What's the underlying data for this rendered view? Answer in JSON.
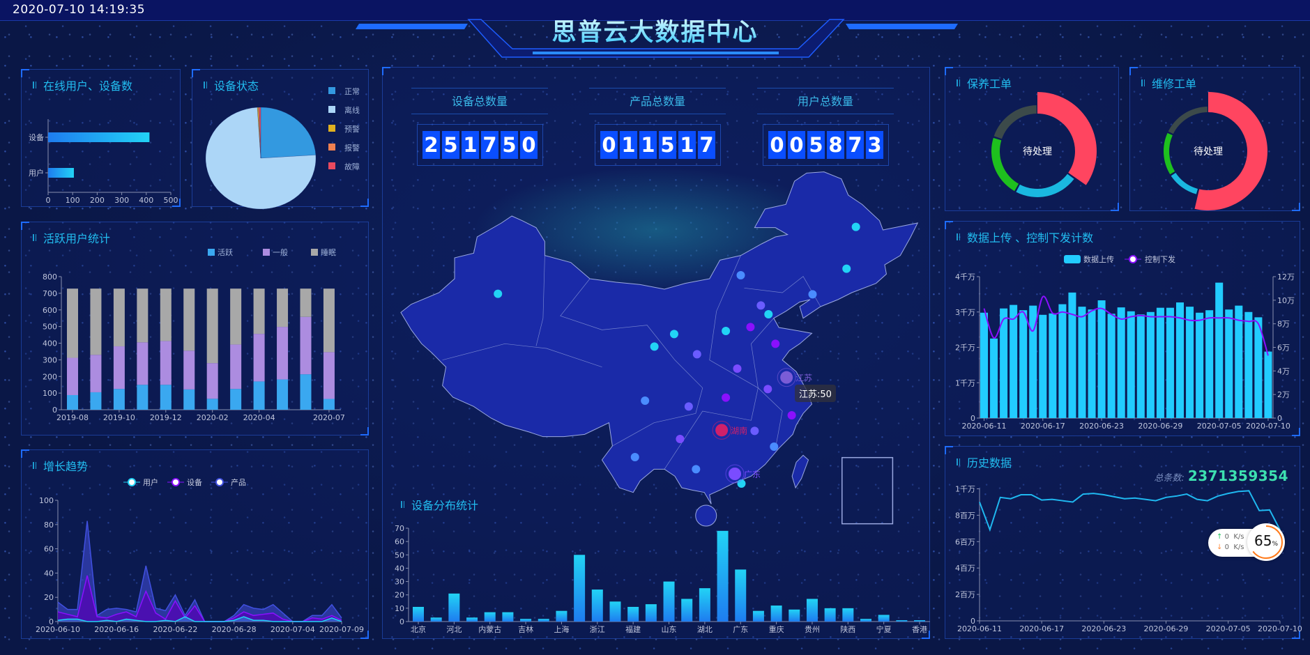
{
  "header": {
    "datetime": "2020-07-10 14:19:35",
    "title": "思普云大数据中心"
  },
  "stats": [
    {
      "label": "设备总数量",
      "digits": [
        "2",
        "5",
        "1",
        "7",
        "5",
        "0"
      ]
    },
    {
      "label": "产品总数量",
      "digits": [
        "0",
        "1",
        "1",
        "5",
        "1",
        "7"
      ]
    },
    {
      "label": "用户总数量",
      "digits": [
        "0",
        "0",
        "5",
        "8",
        "7",
        "3"
      ]
    }
  ],
  "map": {
    "labels": [
      "江苏",
      "湖南",
      "广东"
    ],
    "tooltip": "江苏:50",
    "colors": {
      "land": "#1a2aa8",
      "border": "#9aa8e0",
      "dot_cyan": "#22d3f5",
      "dot_blue": "#4a8cff",
      "dot_purple": "#8a10ff",
      "highlight": "#d0206a"
    }
  },
  "history_total": {
    "label": "总条数:",
    "value": "2371359354"
  },
  "net_widget": {
    "up": "0",
    "down": "0",
    "unit": "K/s",
    "percent": "65",
    "percent_sign": "%",
    "progress": 0.65
  },
  "chart_data": [
    {
      "title": "在线用户、设备数",
      "type": "bar",
      "orientation": "horizontal",
      "categories": [
        "设备",
        "用户"
      ],
      "values": [
        413,
        105
      ],
      "xlim": [
        0,
        500
      ],
      "xticks": [
        "0",
        "100",
        "200",
        "300",
        "400",
        "500"
      ],
      "colors": [
        "#1e7cf0",
        "#22d3f5"
      ]
    },
    {
      "title": "设备状态",
      "type": "pie",
      "categories": [
        "正常",
        "离线",
        "预警",
        "报警",
        "故障"
      ],
      "values": [
        24,
        75,
        0.3,
        0.3,
        0.4
      ],
      "colors": [
        "#3399e0",
        "#acd6f7",
        "#e0b020",
        "#f08050",
        "#e84a5f"
      ],
      "legend": "right"
    },
    {
      "title": "活跃用户统计",
      "type": "bar",
      "stacked": true,
      "xticks": [
        "2019-08",
        "2019-10",
        "2019-12",
        "2020-02",
        "2020-04",
        "2020-07"
      ],
      "yticks": [
        "0",
        "100",
        "200",
        "300",
        "400",
        "500",
        "600",
        "700",
        "800"
      ],
      "ylim": [
        0,
        800
      ],
      "series": [
        {
          "name": "活跃",
          "color": "#3aa8f0",
          "values": [
            88,
            105,
            125,
            150,
            150,
            122,
            66,
            125,
            170,
            182,
            213,
            65
          ]
        },
        {
          "name": "一般",
          "color": "#ac8ce0",
          "values": [
            224,
            225,
            256,
            255,
            263,
            233,
            214,
            267,
            286,
            316,
            345,
            281
          ]
        },
        {
          "name": "睡眠",
          "color": "#a8a8a8",
          "values": [
            416,
            398,
            347,
            323,
            315,
            373,
            448,
            336,
            272,
            230,
            170,
            382
          ]
        }
      ],
      "legend": "top-right"
    },
    {
      "title": "增长趋势",
      "type": "area",
      "xticks": [
        "2020-06-10",
        "2020-06-16",
        "2020-06-22",
        "2020-06-28",
        "2020-07-04",
        "2020-07-09"
      ],
      "yticks": [
        "0",
        "20",
        "40",
        "60",
        "80",
        "100"
      ],
      "ylim": [
        0,
        100
      ],
      "series": [
        {
          "name": "用户",
          "color": "#22d3f5",
          "values": [
            1,
            2,
            2,
            0,
            0,
            1,
            0,
            2,
            1,
            0,
            0,
            1,
            0,
            4,
            0,
            0,
            0,
            0,
            1,
            4,
            1,
            1,
            0,
            0,
            0,
            0,
            0,
            0,
            3,
            0
          ]
        },
        {
          "name": "设备",
          "color": "#8a10ff",
          "values": [
            8,
            6,
            4,
            38,
            4,
            3,
            6,
            8,
            4,
            25,
            7,
            2,
            17,
            3,
            13,
            0,
            0,
            0,
            3,
            8,
            5,
            6,
            7,
            2,
            0,
            0,
            3,
            2,
            5,
            1
          ]
        },
        {
          "name": "产品",
          "color": "#4050e0",
          "values": [
            16,
            10,
            10,
            83,
            5,
            10,
            11,
            10,
            8,
            46,
            11,
            9,
            22,
            5,
            18,
            0,
            0,
            0,
            5,
            14,
            11,
            10,
            14,
            7,
            0,
            0,
            5,
            5,
            14,
            3
          ]
        }
      ],
      "legend": "top"
    },
    {
      "title": "设备分布统计",
      "type": "bar",
      "xticks": [
        "北京",
        "河北",
        "内蒙古",
        "吉林",
        "上海",
        "浙江",
        "福建",
        "山东",
        "湖北",
        "广东",
        "重庆",
        "贵州",
        "陕西",
        "宁夏",
        "香港"
      ],
      "yticks": [
        "0",
        "10",
        "20",
        "30",
        "40",
        "50",
        "60",
        "70"
      ],
      "ylim": [
        0,
        70
      ],
      "values": [
        11,
        3,
        21,
        3,
        7,
        7,
        2,
        2,
        8,
        50,
        24,
        15,
        11,
        13,
        30,
        17,
        25,
        68,
        39,
        8,
        12,
        9,
        17,
        10,
        10,
        2,
        5,
        1,
        1
      ],
      "colors": [
        "#22d3f5",
        "#1e7cf0"
      ]
    },
    {
      "title": "数据上传 、控制下发计数",
      "type": "bar+line",
      "xticks": [
        "2020-06-11",
        "2020-06-17",
        "2020-06-23",
        "2020-06-29",
        "2020-07-05",
        "2020-07-10"
      ],
      "yticks_left": [
        "0",
        "1千万",
        "2千万",
        "3千万",
        "4千万"
      ],
      "ylim_left": [
        0,
        4
      ],
      "unit_left": "千万",
      "yticks_right": [
        "0",
        "2万",
        "4万",
        "6万",
        "8万",
        "10万",
        "12万"
      ],
      "ylim_right": [
        0,
        12
      ],
      "unit_right": "万",
      "series": [
        {
          "name": "数据上传",
          "type": "bar",
          "color": "#22ccff",
          "values": [
            2.98,
            2.25,
            3.1,
            3.2,
            3.05,
            3.18,
            2.92,
            2.96,
            3.22,
            3.55,
            3.15,
            3.07,
            3.33,
            2.95,
            3.13,
            3.02,
            2.93,
            3.0,
            3.12,
            3.12,
            3.27,
            3.15,
            2.98,
            3.05,
            3.83,
            3.07,
            3.18,
            3.0,
            2.85,
            1.88
          ]
        },
        {
          "name": "控制下发",
          "type": "line",
          "color": "#8a10ff",
          "values": [
            9.3,
            6.8,
            8.4,
            8.4,
            9.0,
            7.4,
            10.3,
            8.9,
            9.0,
            8.8,
            8.6,
            9.1,
            9.3,
            8.8,
            8.4,
            8.6,
            8.7,
            8.6,
            8.6,
            8.6,
            8.5,
            8.3,
            8.3,
            8.5,
            8.5,
            8.5,
            8.3,
            8.2,
            8.0,
            5.3
          ]
        }
      ],
      "legend": "top"
    },
    {
      "title": "历史数据",
      "type": "line",
      "xticks": [
        "2020-06-11",
        "2020-06-17",
        "2020-06-23",
        "2020-06-29",
        "2020-07-05",
        "2020-07-10"
      ],
      "yticks": [
        "0",
        "2百万",
        "4百万",
        "6百万",
        "8百万",
        "1千万"
      ],
      "ylim": [
        0,
        10
      ],
      "unit": "百万",
      "values": [
        9.0,
        6.9,
        9.35,
        9.25,
        9.55,
        9.55,
        9.15,
        9.2,
        9.1,
        9.0,
        9.6,
        9.65,
        9.55,
        9.4,
        9.25,
        9.3,
        9.2,
        9.1,
        9.35,
        9.45,
        9.6,
        9.2,
        9.1,
        9.45,
        9.65,
        9.8,
        9.85,
        8.35,
        8.4,
        6.9
      ],
      "color": "#1fb8f0"
    },
    {
      "title": "保养工单",
      "type": "pie",
      "donut": true,
      "center_label": "待处理",
      "values": [
        35,
        23,
        22,
        20
      ],
      "colors": [
        "#ff4560",
        "#1ab8e0",
        "#1ec01e",
        "#3c4a4a"
      ]
    },
    {
      "title": "维修工单",
      "type": "pie",
      "donut": true,
      "center_label": "待处理",
      "values": [
        54,
        12,
        16,
        18
      ],
      "colors": [
        "#ff4560",
        "#1ab8e0",
        "#1ec01e",
        "#3c4a4a"
      ]
    }
  ]
}
